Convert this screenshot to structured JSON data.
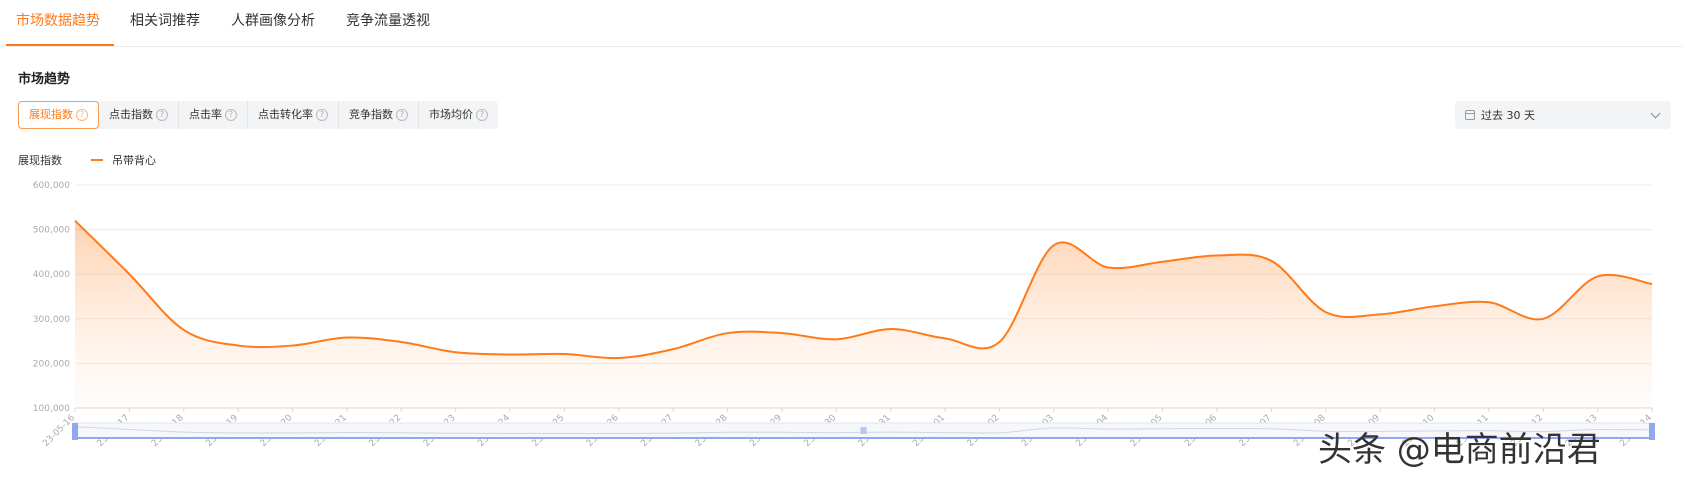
{
  "tabs": [
    {
      "label": "市场数据趋势",
      "active": true
    },
    {
      "label": "相关词推荐",
      "active": false
    },
    {
      "label": "人群画像分析",
      "active": false
    },
    {
      "label": "竞争流量透视",
      "active": false
    }
  ],
  "section_title": "市场趋势",
  "metrics": [
    {
      "label": "展现指数",
      "active": true
    },
    {
      "label": "点击指数",
      "active": false
    },
    {
      "label": "点击率",
      "active": false
    },
    {
      "label": "点击转化率",
      "active": false
    },
    {
      "label": "竞争指数",
      "active": false
    },
    {
      "label": "市场均价",
      "active": false
    }
  ],
  "help_glyph": "?",
  "date_select": {
    "value": "过去 30 天",
    "icon": "calendar-icon",
    "chevron": "chevron-down-icon"
  },
  "legend": {
    "metric_label": "展现指数",
    "series_label": "吊带背心"
  },
  "watermark": "头条 @电商前沿君",
  "colors": {
    "accent": "#ff7a1a",
    "zoom": "#8fa8f0"
  },
  "chart_data": {
    "type": "area",
    "smooth": true,
    "x": [
      "23-05-16",
      "23-05-17",
      "23-05-18",
      "23-05-19",
      "23-05-20",
      "23-05-21",
      "23-05-22",
      "23-05-23",
      "23-05-24",
      "23-05-25",
      "23-05-26",
      "23-05-27",
      "23-05-28",
      "23-05-29",
      "23-05-30",
      "23-05-31",
      "23-06-01",
      "23-06-02",
      "23-06-03",
      "23-06-04",
      "23-06-05",
      "23-06-06",
      "23-06-07",
      "23-06-08",
      "23-06-09",
      "23-06-10",
      "23-06-11",
      "23-06-12",
      "23-06-13",
      "23-06-14"
    ],
    "xtick_labels": [
      "23-05-16",
      "23-05-17",
      "23-05-18",
      "23-05-19",
      "23-05-20",
      "23-05-21",
      "23-05-22",
      "23-05-23",
      "23-05-24",
      "23-05-25",
      "23-05-26",
      "23-05-27",
      "23-05-28",
      "23-05-29",
      "23-05-30",
      "23-05-31",
      "23-06-01",
      "23-06-02",
      "23-06-03",
      "23-06-04",
      "23-06-05",
      "23-06-06",
      "23-06-07",
      "23-06-08",
      "23-06-09",
      "23-06-10",
      "23-06-11",
      "23-06-12",
      "23-06-13",
      "23-06-14"
    ],
    "series": [
      {
        "name": "吊带背心",
        "values": [
          520000,
          400000,
          275000,
          240000,
          240000,
          258000,
          248000,
          225000,
          220000,
          221000,
          212000,
          232000,
          268000,
          268000,
          254000,
          277000,
          256000,
          248000,
          465000,
          415000,
          428000,
          442000,
          430000,
          315000,
          310000,
          328000,
          337000,
          300000,
          395000,
          378000
        ]
      }
    ],
    "ylim": [
      100000,
      600000
    ],
    "yticks": [
      100000,
      200000,
      300000,
      400000,
      500000,
      600000
    ],
    "ytick_labels": [
      "100,000",
      "200,000",
      "300,000",
      "400,000",
      "500,000",
      "600,000"
    ],
    "grid": true,
    "xtick_rotation": -45,
    "data_zoom": true
  }
}
